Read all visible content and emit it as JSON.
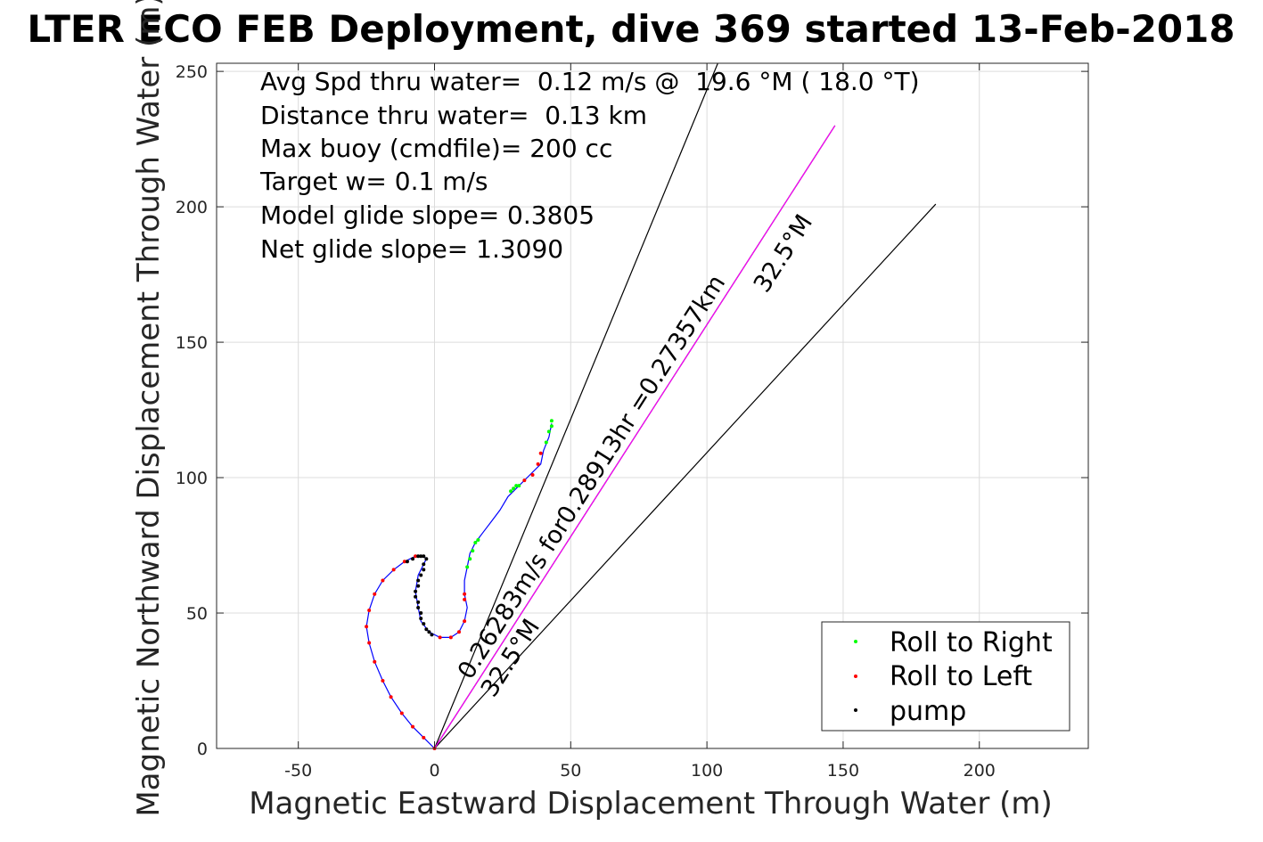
{
  "chart_data": {
    "type": "scatter",
    "title": "LTER ECO FEB Deployment, dive 369 started 13-Feb-2018",
    "xlabel": "Magnetic Eastward Displacement Through Water (m)",
    "ylabel": "Magnetic Northward Displacement Through Water (m)",
    "xlim": [
      -80,
      240
    ],
    "ylim": [
      0,
      253
    ],
    "x_ticks": [
      -50,
      0,
      50,
      100,
      150,
      200
    ],
    "y_ticks": [
      0,
      50,
      100,
      150,
      200,
      250
    ],
    "grid": true,
    "legend_position": "bottom-right",
    "info_lines": [
      "Avg Spd thru water=  0.12 m/s @  19.6 °M ( 18.0 °T)",
      "Distance thru water=  0.13 km",
      "Max buoy (cmdfile)= 200 cc",
      "Target w= 0.1 m/s",
      "Model glide slope= 0.3805",
      "Net glide slope= 1.3090"
    ],
    "annotations": {
      "current": "0.26283m/s for0.28913hr =0.27357km",
      "current_heading": "32.5°M",
      "heading_label": "32.5°M"
    },
    "legend": [
      "Roll to Right",
      "Roll to Left",
      "pump"
    ],
    "colors": {
      "roll_right": "#00ff00",
      "roll_left": "#ff0000",
      "pump": "#000000",
      "track": "#0000ff",
      "current_track": "#ff00ff",
      "heading_lines": "#000000"
    },
    "heading_lines": [
      {
        "name": "left",
        "end": [
          104,
          253
        ]
      },
      {
        "name": "center",
        "end": [
          147,
          230
        ]
      },
      {
        "name": "right",
        "end": [
          184,
          201
        ]
      }
    ],
    "track": [
      [
        0,
        0
      ],
      [
        -4,
        4
      ],
      [
        -8,
        8
      ],
      [
        -12,
        13
      ],
      [
        -16,
        19
      ],
      [
        -19,
        25
      ],
      [
        -22,
        32
      ],
      [
        -24,
        39
      ],
      [
        -25,
        45
      ],
      [
        -24,
        51
      ],
      [
        -22,
        57
      ],
      [
        -19,
        62
      ],
      [
        -15,
        66
      ],
      [
        -11,
        69
      ],
      [
        -7,
        71
      ],
      [
        -4,
        71
      ],
      [
        -3,
        70
      ],
      [
        -4,
        68
      ],
      [
        -6,
        64
      ],
      [
        -7,
        58
      ],
      [
        -6,
        52
      ],
      [
        -5,
        47
      ],
      [
        -2,
        43
      ],
      [
        2,
        41
      ],
      [
        6,
        41
      ],
      [
        9,
        43
      ],
      [
        11,
        47
      ],
      [
        12,
        52
      ],
      [
        11,
        57
      ],
      [
        11,
        62
      ],
      [
        12,
        67
      ],
      [
        13,
        72
      ],
      [
        15,
        76
      ],
      [
        18,
        80
      ],
      [
        21,
        84
      ],
      [
        24,
        88
      ],
      [
        27,
        93
      ],
      [
        31,
        97
      ],
      [
        35,
        101
      ],
      [
        39,
        105
      ],
      [
        40,
        110
      ],
      [
        42,
        115
      ],
      [
        43,
        120
      ]
    ],
    "roll_right_points": [
      [
        12,
        67
      ],
      [
        13,
        70
      ],
      [
        14,
        73
      ],
      [
        15,
        76
      ],
      [
        16,
        77
      ],
      [
        28,
        95
      ],
      [
        29,
        96
      ],
      [
        30,
        97
      ],
      [
        31,
        97
      ],
      [
        41,
        113
      ],
      [
        42,
        117
      ],
      [
        43,
        119
      ],
      [
        43,
        121
      ]
    ],
    "roll_left_points": [
      [
        0,
        0
      ],
      [
        -4,
        4
      ],
      [
        -8,
        8
      ],
      [
        -12,
        13
      ],
      [
        -16,
        19
      ],
      [
        -19,
        25
      ],
      [
        -22,
        32
      ],
      [
        -24,
        39
      ],
      [
        -25,
        45
      ],
      [
        -24,
        51
      ],
      [
        -22,
        57
      ],
      [
        -19,
        62
      ],
      [
        -15,
        66
      ],
      [
        -11,
        69
      ],
      [
        -7,
        71
      ],
      [
        2,
        41
      ],
      [
        6,
        41
      ],
      [
        9,
        43
      ],
      [
        11,
        47
      ],
      [
        11,
        55
      ],
      [
        11,
        57
      ],
      [
        33,
        99
      ],
      [
        36,
        101
      ],
      [
        38,
        105
      ],
      [
        39,
        109
      ]
    ],
    "pump_points": [
      [
        -10,
        69
      ],
      [
        -8,
        70
      ],
      [
        -6,
        71
      ],
      [
        -5,
        71
      ],
      [
        -4,
        71
      ],
      [
        -3,
        70
      ],
      [
        -4,
        68
      ],
      [
        -4,
        66
      ],
      [
        -5,
        64
      ],
      [
        -6,
        62
      ],
      [
        -6,
        60
      ],
      [
        -7,
        58
      ],
      [
        -7,
        56
      ],
      [
        -6,
        54
      ],
      [
        -6,
        52
      ],
      [
        -5,
        50
      ],
      [
        -5,
        48
      ],
      [
        -4,
        46
      ],
      [
        -3,
        44
      ],
      [
        -2,
        43
      ],
      [
        -1,
        42
      ]
    ],
    "current_track": [
      [
        0,
        0
      ],
      [
        147,
        230
      ]
    ]
  }
}
